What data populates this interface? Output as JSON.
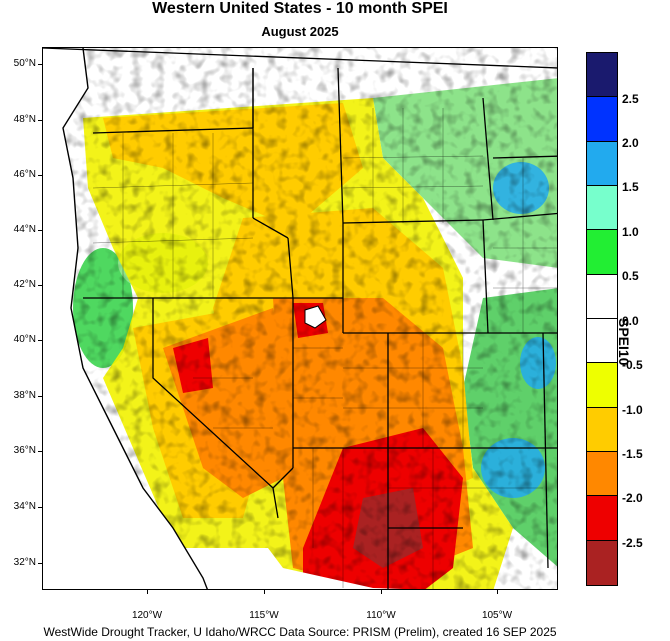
{
  "title": "Western United States - 10 month SPEI",
  "subtitle": "August 2025",
  "footer": "WestWide Drought Tracker, U Idaho/WRCC Data Source: PRISM (Prelim), created 16 SEP 2025",
  "colorbar": {
    "title": "SPEI10",
    "colors": [
      "#1a1a6e",
      "#0033ff",
      "#22aaee",
      "#77ffcc",
      "#22ee33",
      "#ffffff",
      "#ffffff",
      "#eeff00",
      "#ffcc00",
      "#ff8800",
      "#ee0000",
      "#aa2222"
    ],
    "labels": [
      "2.5",
      "2.0",
      "1.5",
      "1.0",
      "0.5",
      "0.0",
      "-0.5",
      "-1.0",
      "-1.5",
      "-2.0",
      "-2.5"
    ]
  },
  "axes": {
    "lat_labels": [
      "50°N",
      "48°N",
      "46°N",
      "44°N",
      "42°N",
      "40°N",
      "38°N",
      "36°N",
      "34°N",
      "32°N"
    ],
    "lon_labels": [
      "120°W",
      "115°W",
      "110°W",
      "105°W"
    ]
  },
  "map": {
    "region": "Western United States",
    "colors": {
      "ocean": "#ffffff",
      "wet_blue": "#22aaee",
      "wet_green": "#22ee33",
      "near_normal": "#ffffff",
      "dry_yellow": "#eeff00",
      "dry_gold": "#ffcc00",
      "dry_orange": "#ff8800",
      "dry_red": "#ee0000",
      "dry_darkred": "#aa2222"
    }
  }
}
